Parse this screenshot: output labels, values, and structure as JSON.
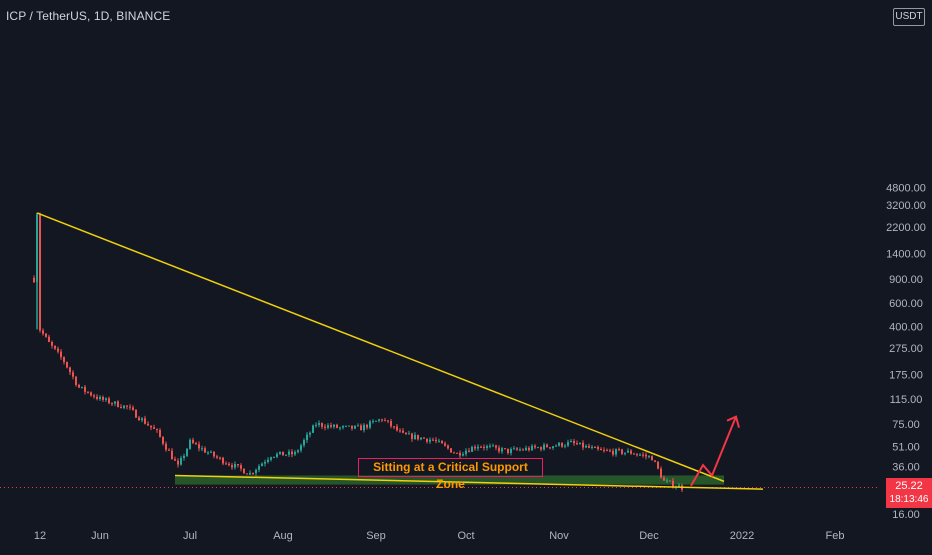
{
  "header": {
    "symbol": "ICP / TetherUS, 1D, BINANCE"
  },
  "axis": {
    "currency": "USDT",
    "current_price": "25.22",
    "countdown": "18:13:46"
  },
  "annotation": {
    "text": "Sitting at a Critical Support Zone"
  },
  "colors": {
    "background": "#131722",
    "up_candle": "#26a69a",
    "down_candle": "#ef5350",
    "trendline": "#f0d10a",
    "support_zone": "#2e6b2e",
    "projection_arrow": "#f23645",
    "annotation_border": "#e91e63",
    "annotation_text": "#ff9800",
    "axis_text": "#b2b5be"
  },
  "chart_data": {
    "type": "candlestick",
    "title": "ICP / TetherUS, 1D, BINANCE",
    "scale": "log",
    "ylim": [
      15,
      4800
    ],
    "y_ticks": [
      "4800.00",
      "3200.00",
      "2200.00",
      "1400.00",
      "900.00",
      "600.00",
      "400.00",
      "275.00",
      "175.00",
      "115.00",
      "75.00",
      "51.00",
      "36.00",
      "16.00"
    ],
    "x_ticks": [
      "12",
      "Jun",
      "Jul",
      "Aug",
      "Sep",
      "Oct",
      "Nov",
      "Dec",
      "2022",
      "Feb"
    ],
    "x_start": "2021-05-12",
    "last_price": 25.22,
    "series": [
      {
        "values": [
          {
            "date": "2021-05-10",
            "close": 900
          },
          {
            "date": "2021-05-11",
            "close": 2800
          },
          {
            "date": "2021-05-12",
            "close": 380
          },
          {
            "date": "2021-05-15",
            "close": 300
          },
          {
            "date": "2021-05-20",
            "close": 220
          },
          {
            "date": "2021-05-25",
            "close": 140
          },
          {
            "date": "2021-06-01",
            "close": 115
          },
          {
            "date": "2021-06-10",
            "close": 100
          },
          {
            "date": "2021-06-20",
            "close": 65
          },
          {
            "date": "2021-06-27",
            "close": 36
          },
          {
            "date": "2021-07-01",
            "close": 55
          },
          {
            "date": "2021-07-10",
            "close": 42
          },
          {
            "date": "2021-07-21",
            "close": 32
          },
          {
            "date": "2021-07-28",
            "close": 44
          },
          {
            "date": "2021-08-05",
            "close": 45
          },
          {
            "date": "2021-08-12",
            "close": 75
          },
          {
            "date": "2021-08-20",
            "close": 70
          },
          {
            "date": "2021-08-27",
            "close": 70
          },
          {
            "date": "2021-09-03",
            "close": 82
          },
          {
            "date": "2021-09-10",
            "close": 62
          },
          {
            "date": "2021-09-20",
            "close": 57
          },
          {
            "date": "2021-09-28",
            "close": 45
          },
          {
            "date": "2021-10-05",
            "close": 52
          },
          {
            "date": "2021-10-15",
            "close": 47
          },
          {
            "date": "2021-10-25",
            "close": 50
          },
          {
            "date": "2021-11-05",
            "close": 54
          },
          {
            "date": "2021-11-15",
            "close": 47
          },
          {
            "date": "2021-11-25",
            "close": 46
          },
          {
            "date": "2021-12-02",
            "close": 42
          },
          {
            "date": "2021-12-06",
            "close": 28
          },
          {
            "date": "2021-12-12",
            "close": 25.22
          }
        ]
      }
    ],
    "annotations": [
      {
        "type": "trendline",
        "from": {
          "date": "2021-05-11",
          "price": 2800
        },
        "to": {
          "date": "2021-12-26",
          "price": 28
        }
      },
      {
        "type": "support_zone",
        "from_date": "2021-06-26",
        "to_date": "2021-12-26",
        "price_top": 31,
        "price_bottom": 26.5
      },
      {
        "type": "support_line",
        "from": {
          "date": "2021-06-26",
          "price": 31
        },
        "to": {
          "date": "2022-01-08",
          "price": 24.5
        }
      },
      {
        "type": "projection_arrow",
        "points": [
          {
            "date": "2021-12-15",
            "price": 26
          },
          {
            "date": "2021-12-19",
            "price": 37
          },
          {
            "date": "2021-12-22",
            "price": 31
          },
          {
            "date": "2021-12-30",
            "price": 85
          }
        ]
      },
      {
        "type": "text",
        "text": "Sitting at a Critical Support Zone"
      }
    ]
  }
}
